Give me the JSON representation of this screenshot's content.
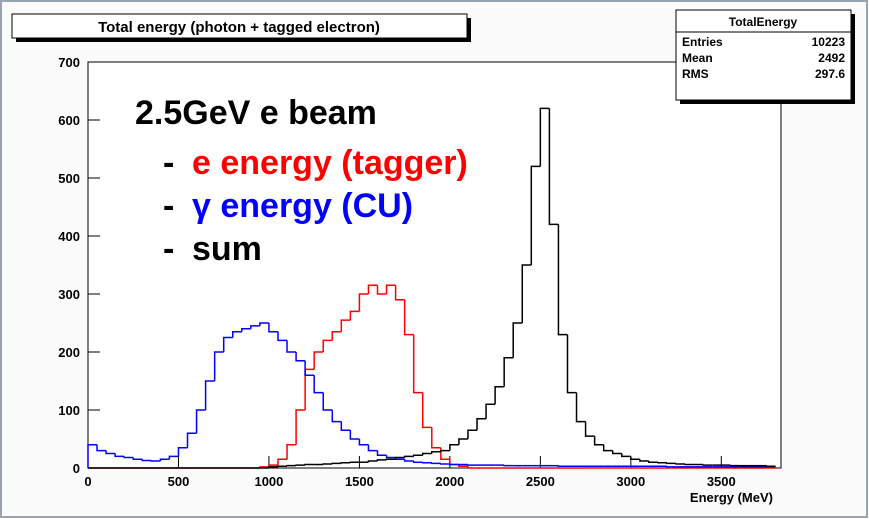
{
  "chart_data": {
    "type": "histogram",
    "title": "Total energy (photon + tagged electron)",
    "x_label": "Energy (MeV)",
    "stats": {
      "title": "TotalEnergy",
      "rows": [
        [
          "Entries",
          "10223"
        ],
        [
          "Mean",
          "2492"
        ],
        [
          "RMS",
          "297.6"
        ]
      ]
    },
    "annotation": "2.5GeV e beam",
    "legend_bullet": "-",
    "bins": [
      0,
      50,
      100,
      150,
      200,
      250,
      300,
      350,
      400,
      450,
      500,
      550,
      600,
      650,
      700,
      750,
      800,
      850,
      900,
      950,
      1000,
      1050,
      1100,
      1150,
      1200,
      1250,
      1300,
      1350,
      1400,
      1450,
      1500,
      1550,
      1600,
      1650,
      1700,
      1750,
      1800,
      1850,
      1900,
      1950,
      2000,
      2050,
      2100,
      2150,
      2200,
      2250,
      2300,
      2350,
      2400,
      2450,
      2500,
      2550,
      2600,
      2650,
      2700,
      2750,
      2800,
      2850,
      2900,
      2950,
      3000,
      3050,
      3100,
      3150,
      3200,
      3250,
      3300,
      3350,
      3400,
      3450,
      3500,
      3550,
      3600,
      3650,
      3700,
      3750,
      3800
    ],
    "series": [
      {
        "name": "e energy (tagger)",
        "color": "#ff0000",
        "values": [
          0,
          0,
          0,
          0,
          0,
          0,
          0,
          0,
          0,
          0,
          0,
          0,
          0,
          0,
          0,
          0,
          0,
          0,
          0,
          2,
          5,
          15,
          40,
          100,
          170,
          200,
          220,
          235,
          255,
          270,
          300,
          315,
          300,
          315,
          290,
          230,
          130,
          70,
          35,
          15,
          6,
          3,
          0,
          0,
          0,
          0,
          0,
          0,
          0,
          0,
          0,
          0,
          0,
          0,
          0,
          0,
          0,
          0,
          0,
          0,
          0,
          0,
          0,
          0,
          0,
          0,
          0,
          0,
          0,
          0,
          0,
          0,
          0,
          0,
          0,
          0
        ]
      },
      {
        "name": "γ energy (CU)",
        "color": "#0000ff",
        "values": [
          40,
          30,
          25,
          20,
          18,
          15,
          13,
          12,
          15,
          20,
          35,
          60,
          100,
          150,
          200,
          225,
          235,
          240,
          245,
          250,
          235,
          220,
          200,
          185,
          160,
          130,
          100,
          80,
          65,
          50,
          40,
          30,
          22,
          18,
          15,
          12,
          10,
          9,
          8,
          7,
          6,
          6,
          5,
          5,
          5,
          5,
          4,
          4,
          4,
          4,
          4,
          4,
          3,
          3,
          3,
          3,
          3,
          3,
          3,
          3,
          3,
          3,
          3,
          3,
          2,
          2,
          2,
          2,
          2,
          2,
          2,
          2,
          2,
          2,
          2,
          2
        ]
      },
      {
        "name": "sum",
        "color": "#000000",
        "values": [
          0,
          0,
          0,
          0,
          0,
          0,
          0,
          0,
          0,
          0,
          0,
          0,
          0,
          0,
          0,
          0,
          0,
          0,
          0,
          0,
          2,
          3,
          4,
          5,
          6,
          6,
          7,
          8,
          9,
          10,
          10,
          12,
          14,
          15,
          18,
          20,
          22,
          25,
          28,
          30,
          40,
          50,
          65,
          85,
          110,
          140,
          190,
          250,
          350,
          520,
          620,
          420,
          230,
          130,
          80,
          55,
          40,
          30,
          25,
          20,
          15,
          12,
          10,
          9,
          8,
          7,
          6,
          6,
          5,
          5,
          5,
          4,
          4,
          4,
          4,
          3
        ]
      }
    ],
    "xlim": [
      0,
      3830
    ],
    "xticks": [
      0,
      500,
      1000,
      1500,
      2000,
      2500,
      3000,
      3500
    ],
    "ylim": [
      0,
      700
    ],
    "yticks": [
      0,
      100,
      200,
      300,
      400,
      500,
      600,
      700
    ]
  }
}
